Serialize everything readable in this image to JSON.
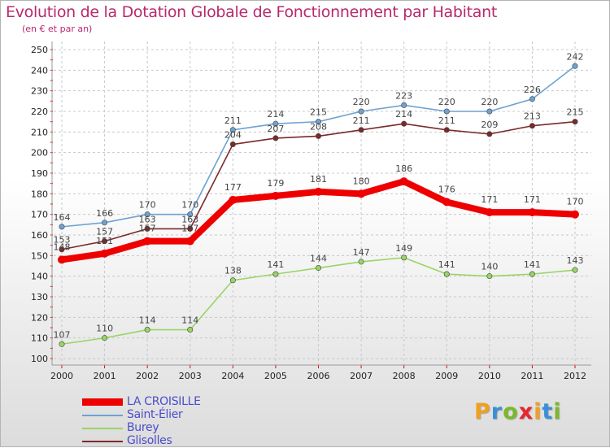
{
  "header": {
    "title": "Evolution de la Dotation Globale de Fonctionnement par Habitant",
    "subtitle": "(en € et par an)"
  },
  "logo": {
    "text": "Proxiti",
    "colors": [
      "#f0a020",
      "#3c8ed8",
      "#79b92a",
      "#e6262e",
      "#f0a020",
      "#3c8ed8",
      "#79b92a"
    ]
  },
  "colors": {
    "title": "#b8286d",
    "legend_text": "#4c4ccc"
  },
  "chart_data": {
    "type": "line",
    "title": "Evolution de la Dotation Globale de Fonctionnement par Habitant",
    "subtitle": "(en € et par an)",
    "x": [
      2000,
      2001,
      2002,
      2003,
      2004,
      2005,
      2006,
      2007,
      2008,
      2009,
      2010,
      2011,
      2012
    ],
    "ylim": [
      100,
      250
    ],
    "yticks": [
      100,
      110,
      120,
      130,
      140,
      150,
      160,
      170,
      180,
      190,
      200,
      210,
      220,
      230,
      240,
      250
    ],
    "grid": true,
    "legend_position": "bottom-left",
    "series": [
      {
        "name": "LA CROISILLE",
        "color": "#ee0000",
        "values": [
          148,
          151,
          157,
          157,
          177,
          179,
          181,
          180,
          186,
          176,
          171,
          171,
          170
        ],
        "labels": [
          "148",
          "151",
          "157",
          "157",
          "177",
          "179",
          "181",
          "180",
          "186",
          "176",
          "171",
          "171",
          "170"
        ]
      },
      {
        "name": "Saint-Élier",
        "color": "#6ea2d2",
        "values": [
          164,
          166,
          170,
          170,
          211,
          214,
          215,
          220,
          223,
          220,
          220,
          226,
          242
        ],
        "labels": [
          "164",
          "166",
          "170",
          "170",
          "211",
          "214",
          "215",
          "220",
          "223",
          "220",
          "220",
          "226",
          "242"
        ]
      },
      {
        "name": "Burey",
        "color": "#99d466",
        "values": [
          107,
          110,
          114,
          114,
          138,
          141,
          144,
          147,
          149,
          141,
          140,
          141,
          143
        ],
        "labels": [
          "107",
          "110",
          "114",
          "114",
          "138",
          "141",
          "144",
          "147",
          "149",
          "141",
          "140",
          "141",
          "143"
        ]
      },
      {
        "name": "Glisolles",
        "color": "#7a2a2a",
        "values": [
          153,
          157,
          163,
          163,
          204,
          207,
          208,
          211,
          214,
          211,
          209,
          213,
          215
        ],
        "labels": [
          "153",
          "157",
          "163",
          "163",
          "204",
          "207",
          "208",
          "211",
          "214",
          "211",
          "209",
          "213",
          "215"
        ]
      }
    ]
  }
}
